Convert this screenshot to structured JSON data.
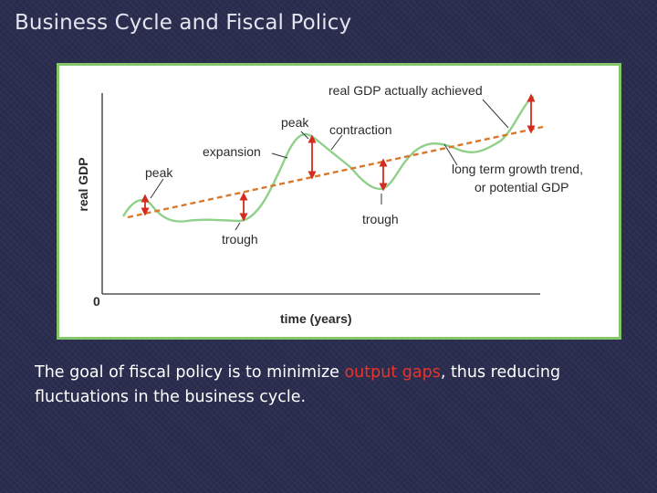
{
  "slide": {
    "title": "Business Cycle and Fiscal Policy"
  },
  "diagram": {
    "y_axis_label": "real GDP",
    "x_axis_label": "time (years)",
    "origin_label": "0",
    "labels": {
      "actual_gdp": "real GDP actually achieved",
      "peak_1": "peak",
      "peak_2": "peak",
      "expansion": "expansion",
      "contraction": "contraction",
      "trough_1": "trough",
      "trough_2": "trough",
      "trend_line_1": "long term growth trend,",
      "trend_line_2": "or potential GDP"
    },
    "colors": {
      "actual_gdp_curve": "#8fd08a",
      "trend_line": "#d9782a",
      "gap_arrows": "#d42a1f",
      "frame_border": "#86c66a"
    }
  },
  "caption": {
    "before": "The goal of fiscal policy is to minimize ",
    "highlight": "output gaps",
    "after": ", thus reducing fluctuations in the business cycle.",
    "highlight_color": "#e8342c"
  }
}
